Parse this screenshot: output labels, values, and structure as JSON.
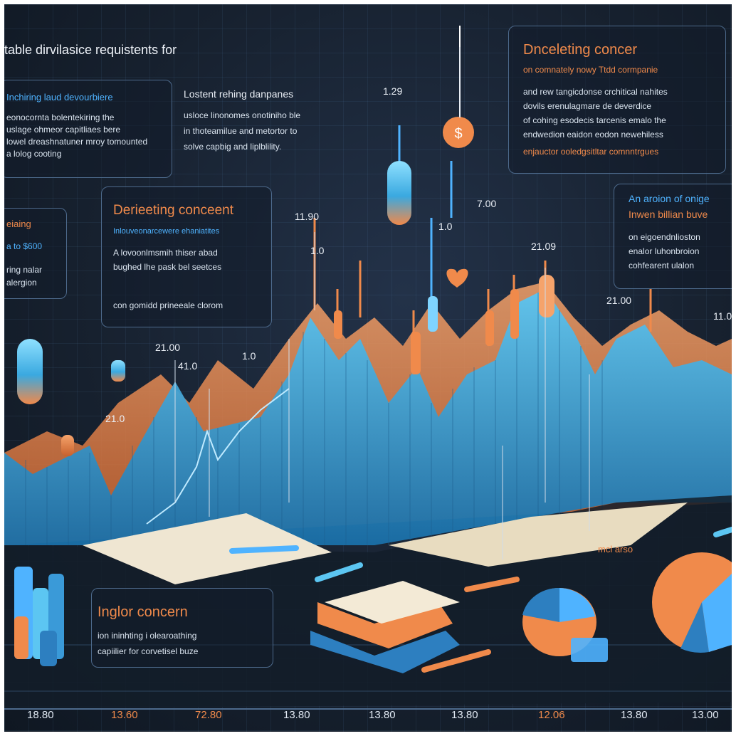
{
  "header": {
    "title": "table dirvilasice requistents for"
  },
  "panel_top_left": {
    "heading": "Inchiring laud devourbiere",
    "lines": [
      "eonocornta bolentekiring the",
      "uslage ohmeor capitliaes bere",
      "lowel dreashnatuner mroy tomounted",
      "a lolog cooting"
    ]
  },
  "panel_top_mid": {
    "heading": "Lostent rehing danpanes",
    "lines": [
      "usloce linonomes onotiniho ble",
      "in thoteamilue and metortor to",
      "solve capbig and liplblility."
    ]
  },
  "panel_top_right": {
    "heading": "Dnceleting concer",
    "subheading": "on comnately nowy Ttdd cormpanie",
    "lines": [
      "and rew tangicdonse crchitical nahites",
      "dovils erenulagmare de deverdice",
      "of cohing esodecis tarcenis emalo the",
      "endwedion eaidon eodon newehiless",
      "enjauctor ooledgsitltar comnntrgues"
    ]
  },
  "panel_mid_left": {
    "heading": "Derieeting conceent",
    "subheading": "Inlouveonarcewere ehaniatites",
    "lines": [
      "A lovoonlmsmih thiser abad",
      "bughed lhe pask bel seetces",
      "con gomidd prineeale clorom"
    ]
  },
  "panel_left_edge": {
    "heading": "eiaing",
    "value": "a to $600",
    "lines": [
      "ring nalar",
      "alergion"
    ]
  },
  "panel_mid_right": {
    "heading": "An aroion of onige",
    "subheading": "Inwen billian buve",
    "lines": [
      "on eigoendnlioston",
      "enalor luhonbroion",
      "cohfearent ulalon"
    ]
  },
  "panel_bottom_left": {
    "heading": "Inglor concern",
    "lines": [
      "ion ininhting i olearoathing",
      "capiilier for corvetisel buze"
    ]
  },
  "price_labels": [
    {
      "text": "1.29"
    },
    {
      "text": "11.90"
    },
    {
      "text": "7.00"
    },
    {
      "text": "1.0"
    },
    {
      "text": "21.09"
    },
    {
      "text": "1.0"
    },
    {
      "text": "21.00"
    },
    {
      "text": "41.0"
    },
    {
      "text": "1.0"
    },
    {
      "text": "21.0"
    },
    {
      "text": "21.00"
    },
    {
      "text": "11.0"
    }
  ],
  "x_axis_labels": [
    "18.80",
    "13.60",
    "72.80",
    "13.80",
    "13.80",
    "13.80",
    "12.06",
    "13.80",
    "13.00"
  ],
  "bottom_tag": "mcl arso",
  "colors": {
    "background": "#17212f",
    "accent_orange": "#f08a4b",
    "accent_blue": "#4fb3ff",
    "panel_border": "#4d6a8c"
  }
}
